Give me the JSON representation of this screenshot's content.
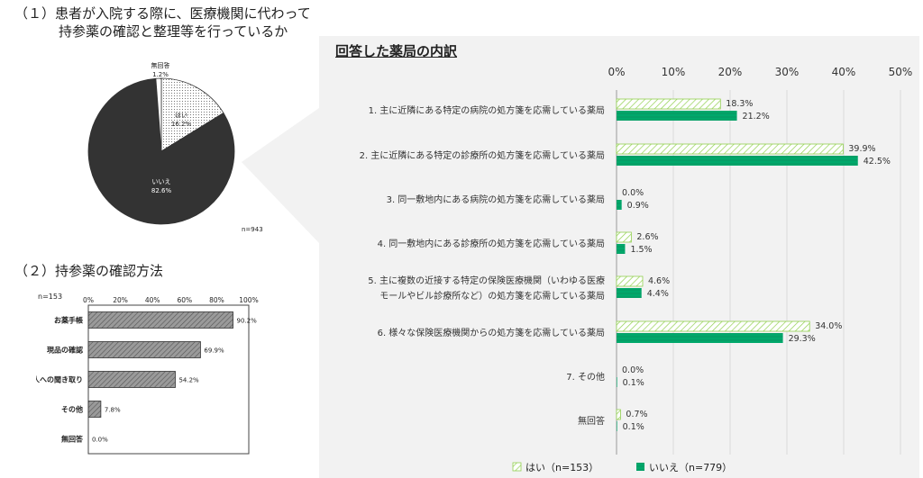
{
  "headings": {
    "q1_line1": "（１）患者が入院する際に、医療機関に代わって",
    "q1_line2": "持参薬の確認と整理等を行っているか",
    "q2": "（２）持参薬の確認方法",
    "right_title": "回答した薬局の内訳"
  },
  "colors": {
    "hai_hatch": "#92d050",
    "iie_fill": "#00a86b",
    "panel_bg": "#f2f2f2",
    "pie_dark": "#333333",
    "bar_gray": "#808080"
  },
  "chart_data": [
    {
      "type": "pie",
      "slices": [
        {
          "label": "はい",
          "value": 16.2,
          "value_label": "16.2%"
        },
        {
          "label": "いいえ",
          "value": 82.6,
          "value_label": "82.6%"
        },
        {
          "label": "無回答",
          "value": 1.2,
          "value_label": "1.2%"
        }
      ],
      "n_label": "n=943"
    },
    {
      "type": "bar",
      "orientation": "horizontal",
      "n_label": "n=153",
      "categories": [
        "お薬手帳",
        "現品の確認",
        "本人への聞き取り",
        "その他",
        "無回答"
      ],
      "values": [
        90.2,
        69.9,
        54.2,
        7.8,
        0.0
      ],
      "value_labels": [
        "90.2%",
        "69.9%",
        "54.2%",
        "7.8%",
        "0.0%"
      ],
      "xlim": [
        0,
        100
      ],
      "ticks": [
        "0%",
        "20%",
        "40%",
        "60%",
        "80%",
        "100%"
      ]
    },
    {
      "type": "bar",
      "orientation": "horizontal",
      "title": "回答した薬局の内訳",
      "categories": [
        [
          "1.  主に近隣にある特定の病院の処方箋を応需している薬局"
        ],
        [
          "2.  主に近隣にある特定の診療所の処方箋を応需している薬局"
        ],
        [
          "3.  同一敷地内にある病院の処方箋を応需している薬局"
        ],
        [
          "4.  同一敷地内にある診療所の処方箋を応需している薬局"
        ],
        [
          "5.  主に複数の近接する特定の保険医療機関（いわゆる医療",
          "モールやビル診療所など）の処方箋を応需している薬局"
        ],
        [
          "6.  様々な保険医療機関からの処方箋を応需している薬局"
        ],
        [
          "7.  その他"
        ],
        [
          "無回答"
        ]
      ],
      "series": [
        {
          "name": "はい（n=153）",
          "values": [
            18.3,
            39.9,
            0.0,
            2.6,
            4.6,
            34.0,
            0.0,
            0.7
          ],
          "labels": [
            "18.3%",
            "39.9%",
            "0.0%",
            "2.6%",
            "4.6%",
            "34.0%",
            "0.0%",
            "0.7%"
          ]
        },
        {
          "name": "いいえ（n=779）",
          "values": [
            21.2,
            42.5,
            0.9,
            1.5,
            4.4,
            29.3,
            0.1,
            0.1
          ],
          "labels": [
            "21.2%",
            "42.5%",
            "0.9%",
            "1.5%",
            "4.4%",
            "29.3%",
            "0.1%",
            "0.1%"
          ]
        }
      ],
      "xlim": [
        0,
        50
      ],
      "ticks": [
        "0%",
        "10%",
        "20%",
        "30%",
        "40%",
        "50%"
      ],
      "grid": true,
      "legend": "bottom"
    }
  ]
}
